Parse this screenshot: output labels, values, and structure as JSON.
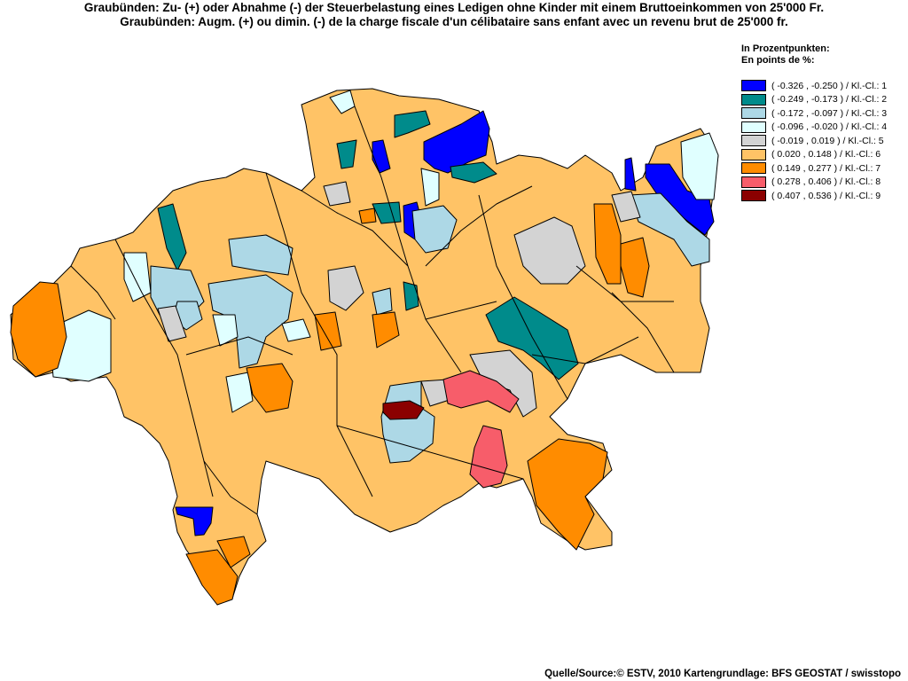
{
  "title": {
    "line_de": "Graubünden: Zu- (+) oder Abnahme (-) der Steuerbelastung eines Ledigen ohne Kinder mit einem Bruttoeinkommen von 25'000 Fr.",
    "line_fr": "Graubünden: Augm. (+) ou dimin. (-) de la charge fiscale d'un célibataire sans enfant avec un revenu brut de 25'000 fr."
  },
  "legend": {
    "heading_de": "In Prozentpunkten:",
    "heading_fr": "En points de %:",
    "classes": [
      {
        "label": "( -0.326 , -0.250 ) / Kl.-Cl.: 1",
        "color": "#0000ff"
      },
      {
        "label": "( -0.249 , -0.173 ) / Kl.-Cl.: 2",
        "color": "#008b8b"
      },
      {
        "label": "( -0.172 , -0.097 ) / Kl.-Cl.: 3",
        "color": "#add8e6"
      },
      {
        "label": "( -0.096 , -0.020 ) / Kl.-Cl.: 4",
        "color": "#e0ffff"
      },
      {
        "label": "( -0.019 , 0.019 ) / Kl.-Cl.: 5",
        "color": "#d3d3d3"
      },
      {
        "label": "( 0.020 , 0.148 ) / Kl.-Cl.: 6",
        "color": "#ffc366"
      },
      {
        "label": "( 0.149 , 0.277 ) / Kl.-Cl.: 7",
        "color": "#ff8c00"
      },
      {
        "label": "( 0.278 , 0.406 ) / Kl.-Cl.: 8",
        "color": "#f75d6a"
      },
      {
        "label": "( 0.407 , 0.536 ) / Kl.-Cl.: 9",
        "color": "#8b0000"
      }
    ]
  },
  "source": "Quelle/Source:© ESTV, 2010 Kartengrundlage: BFS GEOSTAT / swisstopo",
  "map": {
    "region": "Graubünden"
  }
}
